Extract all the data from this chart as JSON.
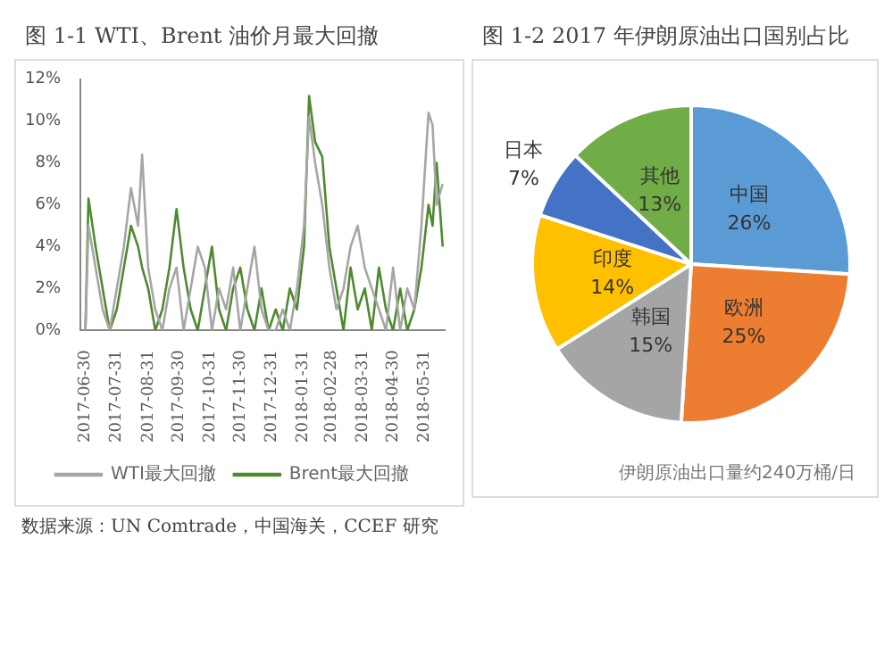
{
  "chart_data": [
    {
      "type": "line",
      "title": "图 1-1 WTI、Brent 油价月最大回撤",
      "x": [
        "2017-06-30",
        "2017-07-03",
        "2017-07-10",
        "2017-07-17",
        "2017-07-24",
        "2017-07-31",
        "2017-08-07",
        "2017-08-14",
        "2017-08-21",
        "2017-08-25",
        "2017-08-31",
        "2017-09-07",
        "2017-09-14",
        "2017-09-21",
        "2017-09-28",
        "2017-10-05",
        "2017-10-12",
        "2017-10-19",
        "2017-10-26",
        "2017-11-02",
        "2017-11-09",
        "2017-11-16",
        "2017-11-23",
        "2017-11-30",
        "2017-12-07",
        "2017-12-14",
        "2017-12-21",
        "2017-12-28",
        "2018-01-04",
        "2018-01-11",
        "2018-01-18",
        "2018-01-25",
        "2018-02-01",
        "2018-02-06",
        "2018-02-12",
        "2018-02-19",
        "2018-02-26",
        "2018-03-05",
        "2018-03-12",
        "2018-03-19",
        "2018-03-26",
        "2018-04-02",
        "2018-04-09",
        "2018-04-16",
        "2018-04-23",
        "2018-04-30",
        "2018-05-07",
        "2018-05-14",
        "2018-05-21",
        "2018-05-28",
        "2018-06-04",
        "2018-06-08",
        "2018-06-12",
        "2018-06-18"
      ],
      "series": [
        {
          "name": "WTI最大回撤",
          "color": "#a6a6a6",
          "values": [
            0,
            5,
            3,
            1,
            0,
            2,
            4,
            6.8,
            5,
            8.4,
            3,
            1,
            0,
            2,
            3,
            0,
            2,
            4,
            3,
            0,
            2,
            1,
            3,
            0,
            2,
            4,
            1,
            0,
            0,
            1,
            0,
            2,
            5,
            10.2,
            8,
            6,
            3,
            1,
            2,
            4,
            5,
            3,
            2,
            1,
            0,
            3,
            0,
            2,
            1,
            5,
            10.4,
            9.8,
            6,
            7
          ]
        },
        {
          "name": "Brent最大回撤",
          "color": "#4e8a2e",
          "values": [
            0,
            6.3,
            4,
            2,
            0,
            1,
            3,
            5,
            4,
            3,
            2,
            0,
            1,
            3,
            5.8,
            3,
            1,
            0,
            2,
            4,
            1,
            0,
            2,
            3,
            1,
            0,
            2,
            0,
            1,
            0,
            2,
            1,
            4,
            11.2,
            9,
            8.3,
            4,
            2,
            0,
            3,
            1,
            2,
            0,
            3,
            1,
            0,
            2,
            0,
            1,
            3,
            6,
            5,
            8,
            4
          ]
        }
      ],
      "xlim": [
        "2017-06-25",
        "2018-06-20"
      ],
      "xticks": [
        "2017-06-30",
        "2017-07-31",
        "2017-08-31",
        "2017-09-30",
        "2017-10-31",
        "2017-11-30",
        "2017-12-31",
        "2018-01-31",
        "2018-02-28",
        "2018-03-31",
        "2018-04-30",
        "2018-05-31"
      ],
      "ylim": [
        0,
        12
      ],
      "yticks": [
        {
          "value": 0,
          "label": "0%"
        },
        {
          "value": 2,
          "label": "2%"
        },
        {
          "value": 4,
          "label": "4%"
        },
        {
          "value": 6,
          "label": "6%"
        },
        {
          "value": 8,
          "label": "8%"
        },
        {
          "value": 10,
          "label": "10%"
        },
        {
          "value": 12,
          "label": "12%"
        }
      ],
      "grid": false,
      "legend": "bottom",
      "marker": "none",
      "line_style": "solid",
      "annotations": [
        "数据来源：UN Comtrade，中国海关，CCEF 研究"
      ]
    },
    {
      "type": "pie",
      "title": "图 1-2 2017 年伊朗原油出口国别占比",
      "categories": [
        "中国",
        "欧洲",
        "韩国",
        "印度",
        "日本",
        "其他"
      ],
      "values": [
        26,
        25,
        15,
        14,
        7,
        13
      ],
      "value_labels": [
        "26%",
        "25%",
        "15%",
        "14%",
        "7%",
        "13%"
      ],
      "colors": [
        "#5b9bd5",
        "#ed7d31",
        "#a5a5a5",
        "#ffc000",
        "#4472c4",
        "#70ad47"
      ],
      "legend": false,
      "annotations": [
        "伊朗原油出口量约240万桶/日"
      ]
    }
  ]
}
